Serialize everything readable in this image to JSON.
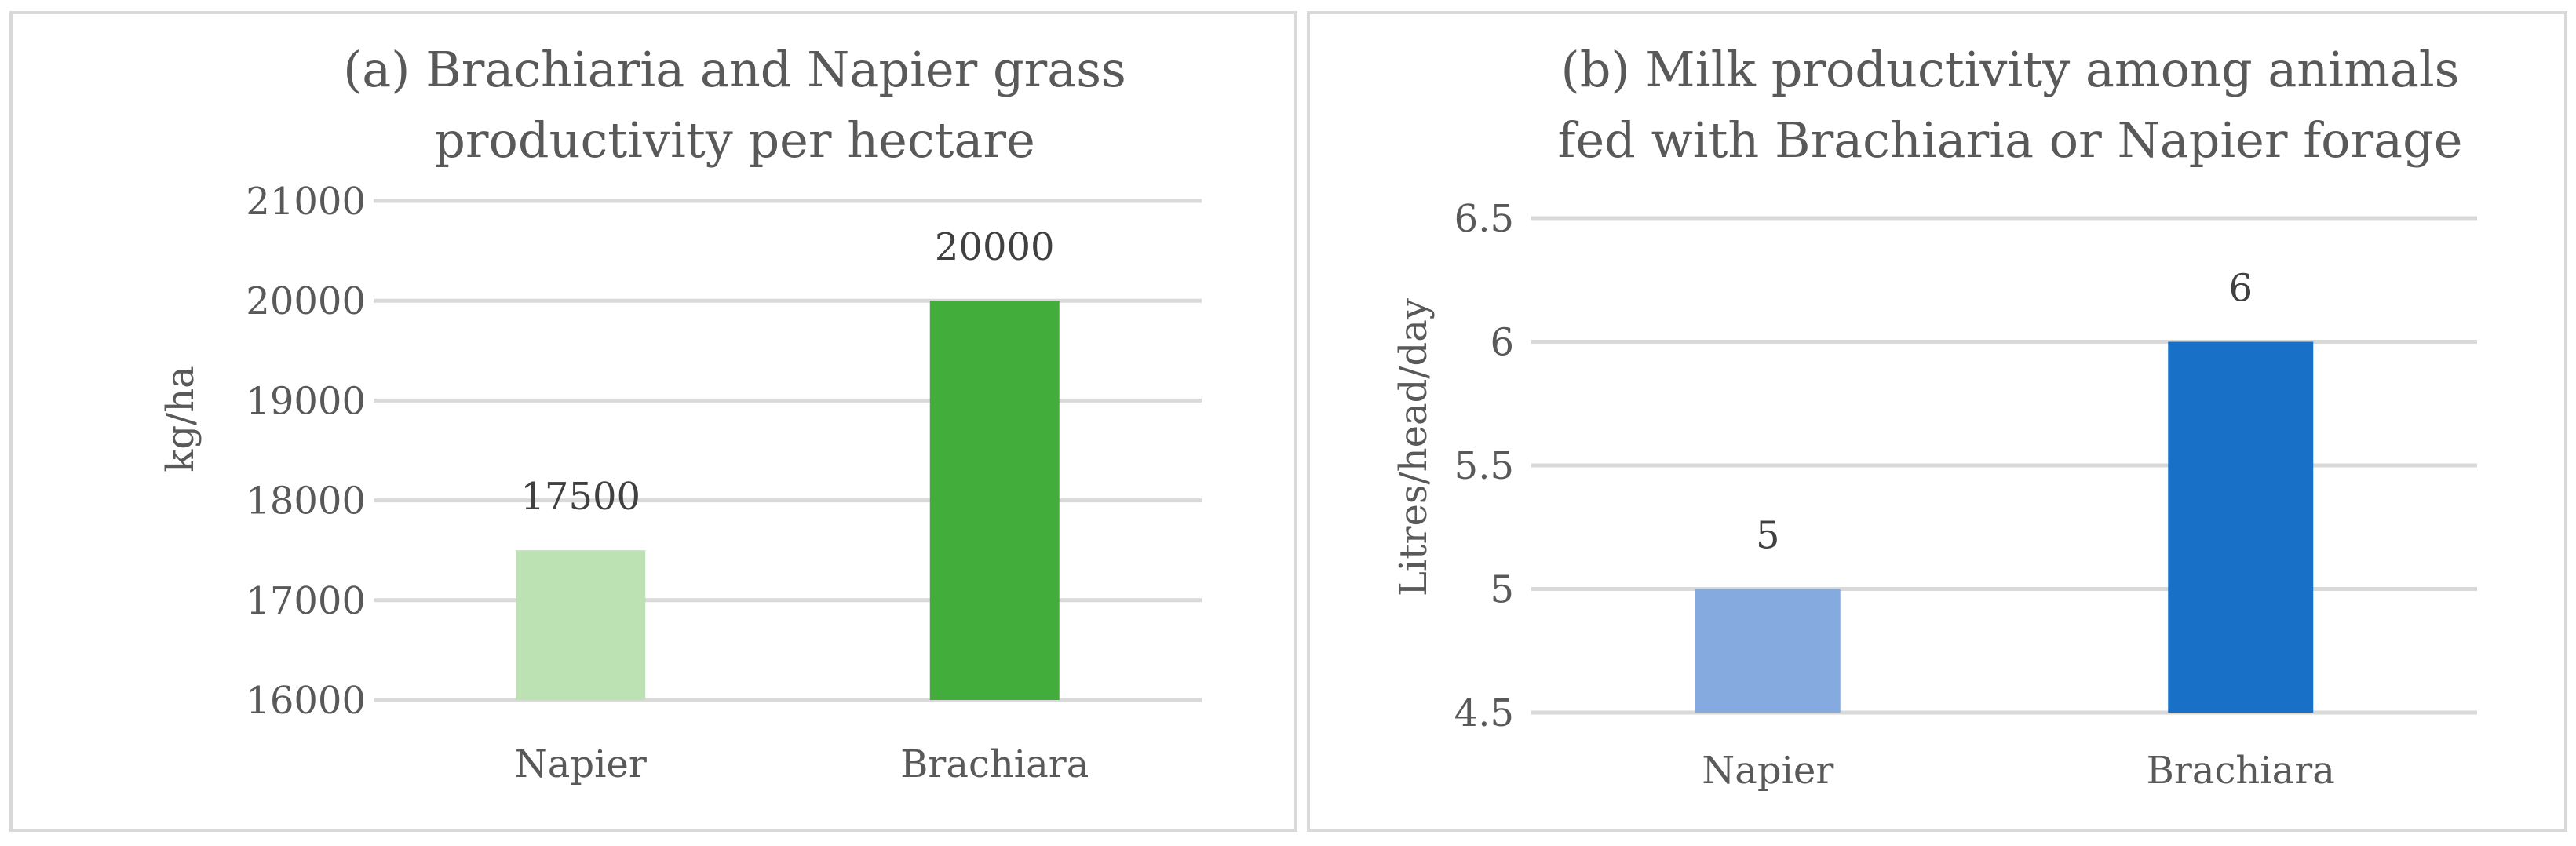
{
  "chart_data": [
    {
      "type": "bar",
      "title_lines": [
        "(a) Brachiaria and Napier grass",
        "productivity per hectare"
      ],
      "xlabel": "",
      "ylabel": "kg/ha",
      "categories": [
        "Napier",
        "Brachiara"
      ],
      "values": [
        17500,
        20000
      ],
      "data_labels": [
        "17500",
        "20000"
      ],
      "ylim": [
        16000,
        21000
      ],
      "yticks": [
        "16000",
        "17000",
        "18000",
        "19000",
        "20000",
        "21000"
      ],
      "bar_colors": [
        "#bce2b4",
        "#43ad3c"
      ],
      "grid": true,
      "legend": "none"
    },
    {
      "type": "bar",
      "title_lines": [
        "(b) Milk productivity among animals",
        "fed with Brachiaria or Napier forage"
      ],
      "xlabel": "",
      "ylabel": "Litres/head/day",
      "categories": [
        "Napier",
        "Brachiara"
      ],
      "values": [
        5,
        6
      ],
      "data_labels": [
        "5",
        "6"
      ],
      "ylim": [
        4.5,
        6.5
      ],
      "yticks": [
        "4.5",
        "5",
        "5.5",
        "6",
        "6.5"
      ],
      "bar_colors": [
        "#85aadf",
        "#1871c7"
      ],
      "grid": true,
      "legend": "none"
    }
  ]
}
